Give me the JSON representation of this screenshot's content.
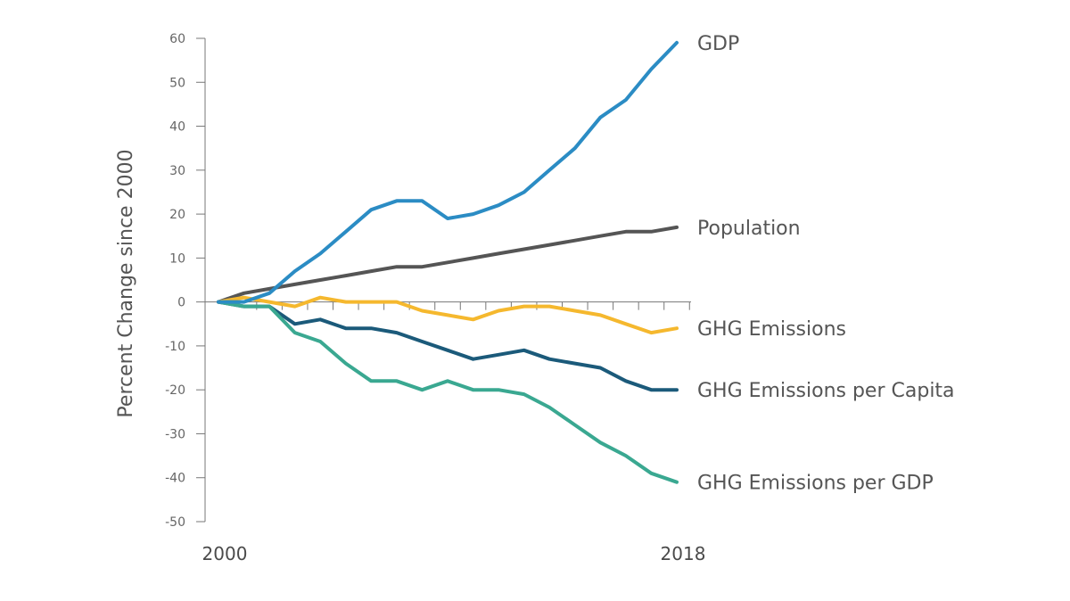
{
  "chart_data": {
    "type": "line",
    "title": "",
    "xlabel": "",
    "ylabel": "Percent Change since 2000",
    "x": [
      2000,
      2001,
      2002,
      2003,
      2004,
      2005,
      2006,
      2007,
      2008,
      2009,
      2010,
      2011,
      2012,
      2013,
      2014,
      2015,
      2016,
      2017,
      2018
    ],
    "x_tick_labels": [
      {
        "x": 2000,
        "label": "2000"
      },
      {
        "x": 2018,
        "label": "2018"
      }
    ],
    "ylim": [
      -50,
      60
    ],
    "y_ticks": [
      60,
      50,
      40,
      30,
      20,
      10,
      0,
      -10,
      -20,
      -30,
      -40,
      -50
    ],
    "grid": false,
    "legend": "inline labels at right end of each line",
    "series": [
      {
        "name": "GDP",
        "color": "#2b8cc4",
        "values": [
          0,
          0,
          2,
          7,
          11,
          16,
          21,
          23,
          23,
          19,
          20,
          22,
          25,
          30,
          35,
          42,
          46,
          53,
          59
        ]
      },
      {
        "name": "Population",
        "color": "#555555",
        "values": [
          0,
          2,
          3,
          4,
          5,
          6,
          7,
          8,
          8,
          9,
          10,
          11,
          12,
          13,
          14,
          15,
          16,
          16,
          17
        ]
      },
      {
        "name": "GHG Emissions",
        "color": "#f5b82e",
        "values": [
          0,
          1,
          0,
          -1,
          1,
          0,
          0,
          0,
          -2,
          -3,
          -4,
          -2,
          -1,
          -1,
          -2,
          -3,
          -5,
          -7,
          -6
        ]
      },
      {
        "name": "GHG Emissions per Capita",
        "color": "#1b5a7a",
        "values": [
          0,
          -1,
          -1,
          -5,
          -4,
          -6,
          -6,
          -7,
          -9,
          -11,
          -13,
          -12,
          -11,
          -13,
          -14,
          -15,
          -18,
          -20,
          -20
        ]
      },
      {
        "name": "GHG Emissions per GDP",
        "color": "#3aa891",
        "values": [
          0,
          -1,
          -1,
          -7,
          -9,
          -14,
          -18,
          -18,
          -20,
          -18,
          -20,
          -20,
          -21,
          -24,
          -28,
          -32,
          -35,
          -39,
          -41
        ]
      }
    ]
  }
}
